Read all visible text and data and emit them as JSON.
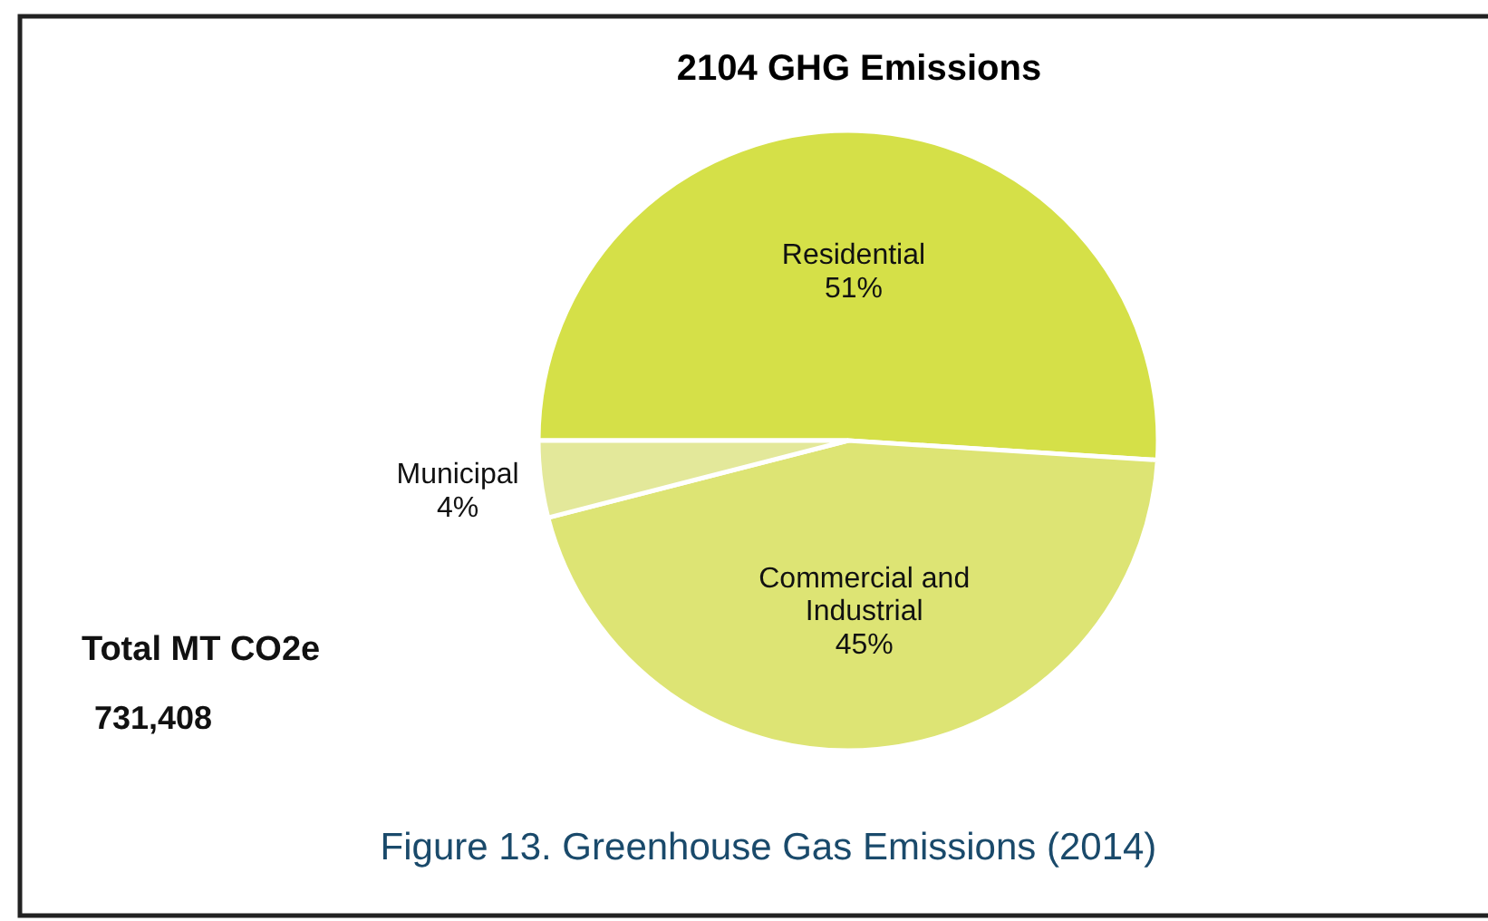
{
  "chart_data": {
    "type": "pie",
    "title": "2104 GHG Emissions",
    "categories": [
      "Residential",
      "Commercial and Industrial",
      "Municipal"
    ],
    "values": [
      51,
      45,
      4
    ],
    "colors": [
      "#d5e048",
      "#dde474",
      "#e3e89a"
    ],
    "value_labels": [
      "51%",
      "45%",
      "4%"
    ],
    "annotations": [
      "Total MT CO2e",
      "731,408",
      "Figure 13. Greenhouse Gas Emissions (2014)"
    ]
  }
}
